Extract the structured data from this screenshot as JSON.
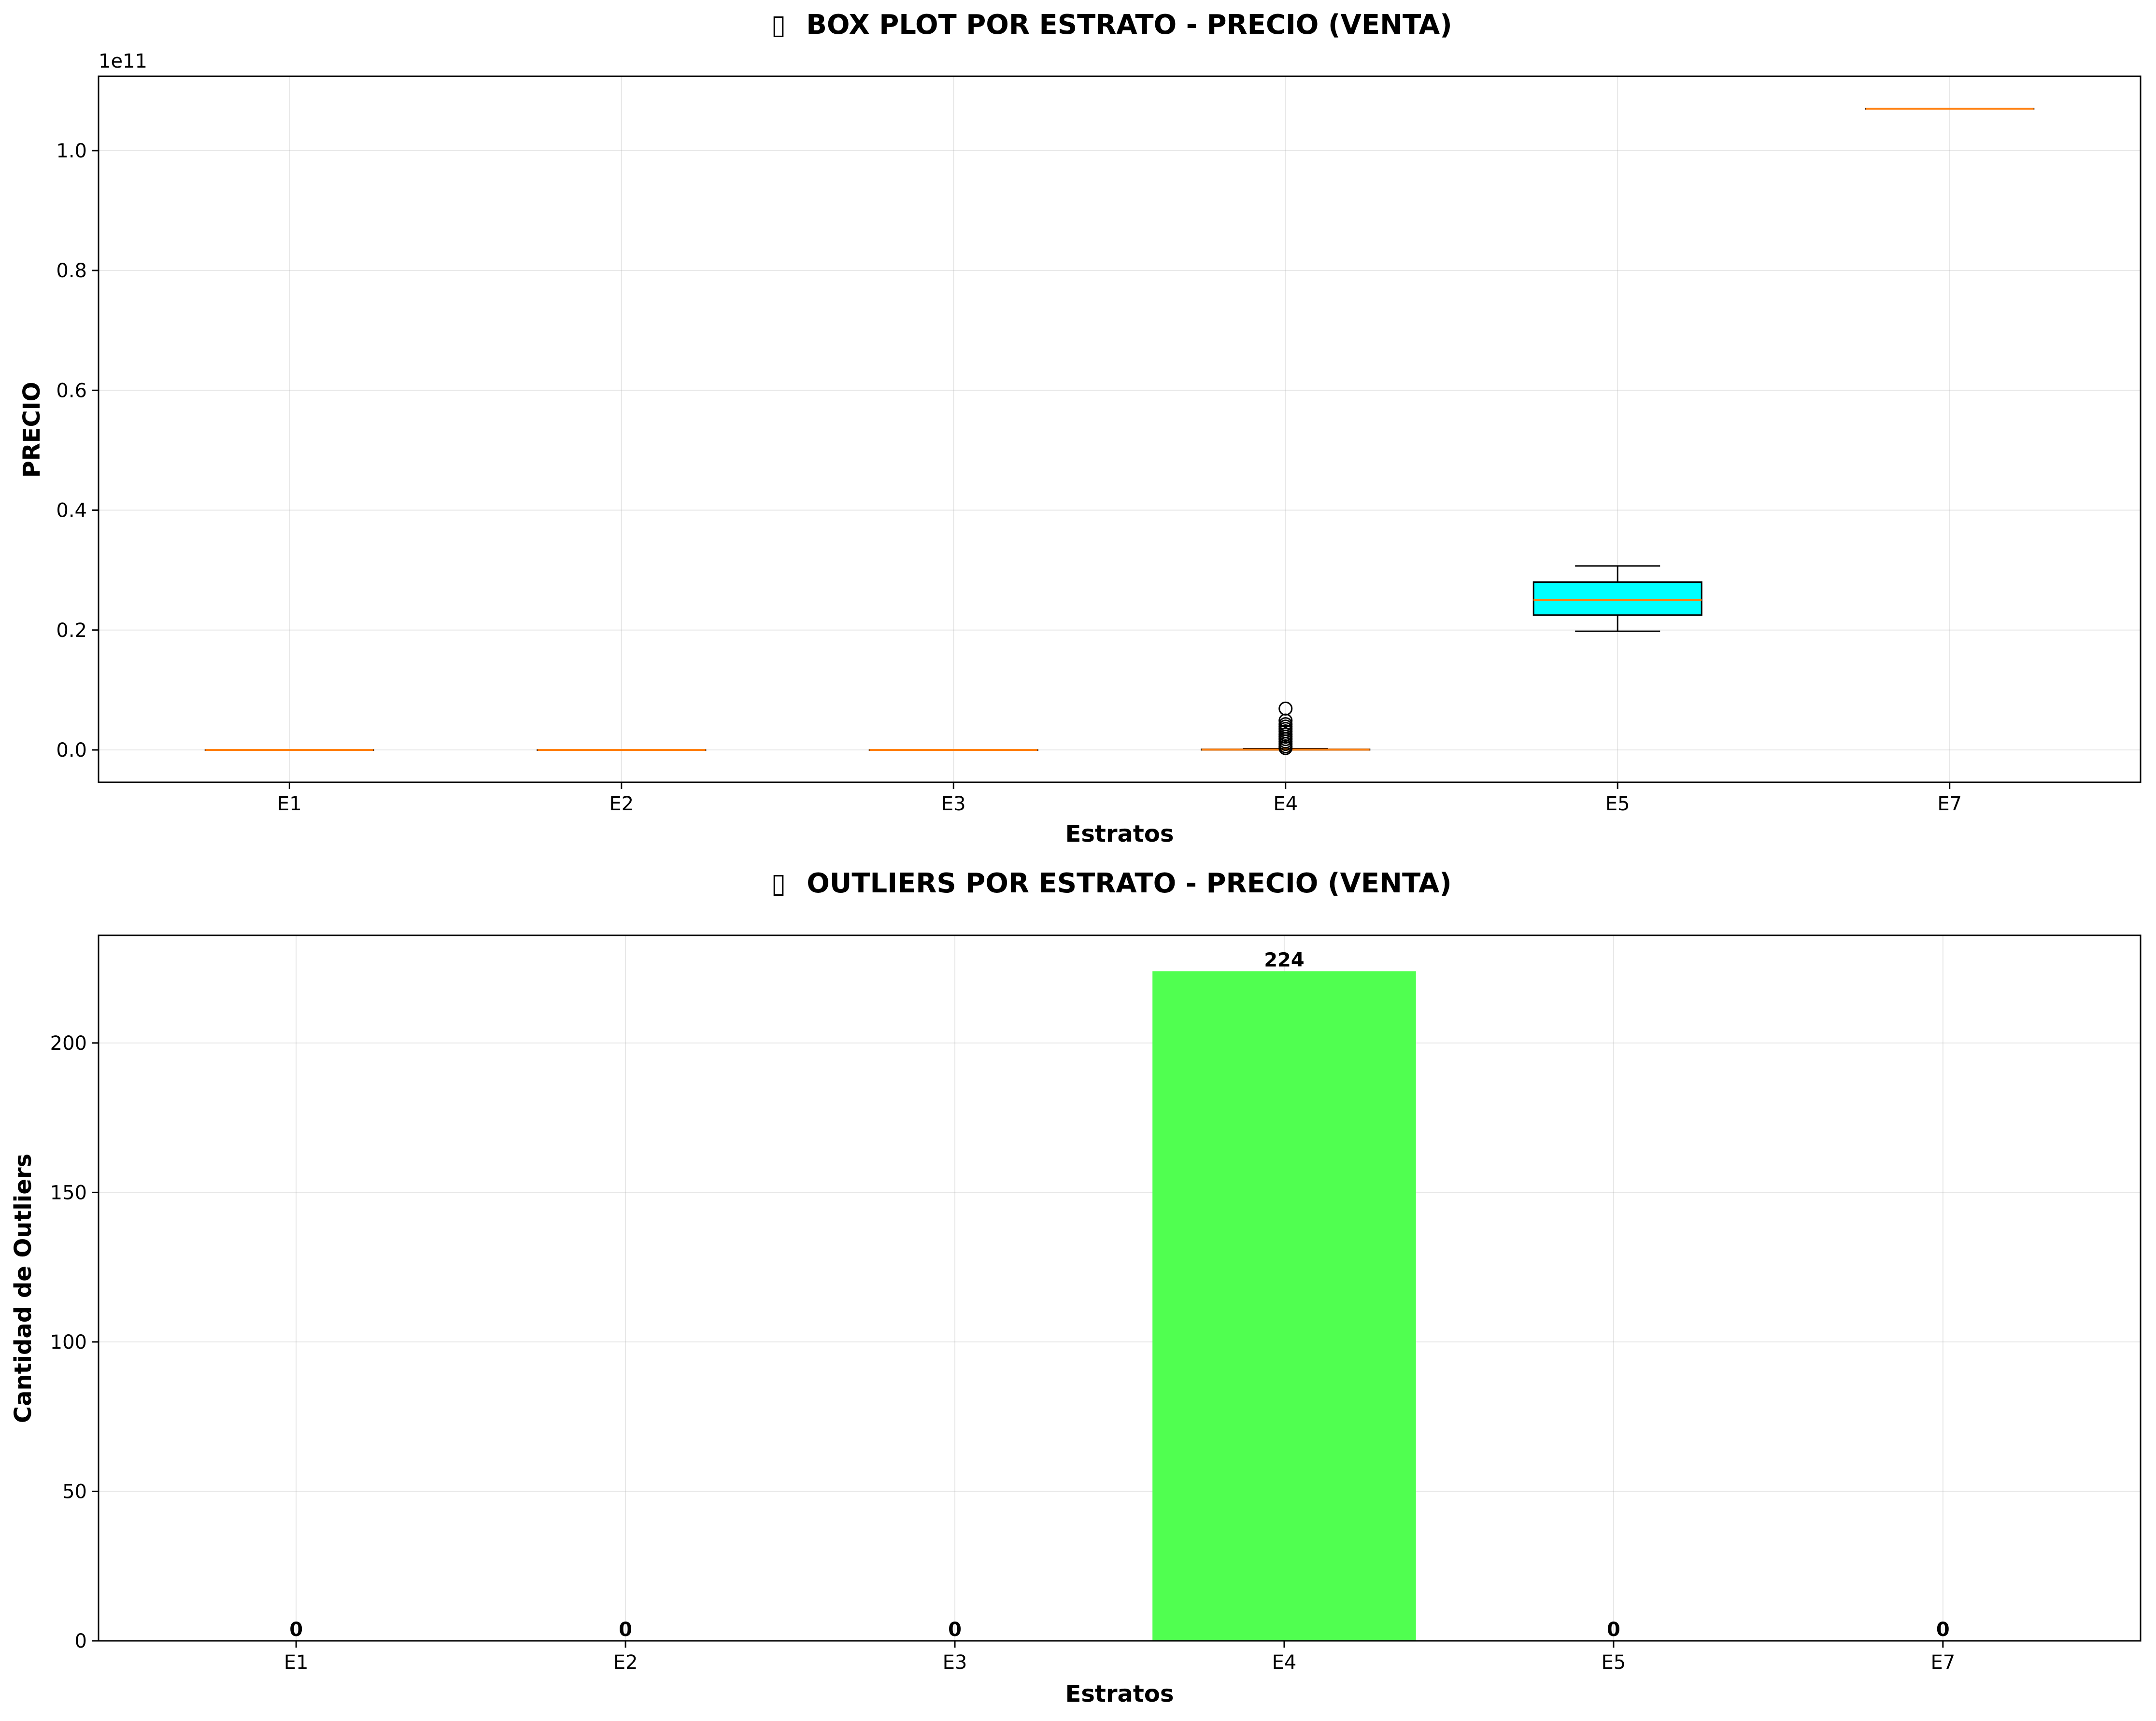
{
  "chart_data": [
    {
      "type": "box",
      "title": "BOX PLOT POR ESTRATO - PRECIO (VENTA)",
      "title_icon": "chart-icon",
      "xlabel": "Estratos",
      "ylabel": "PRECIO",
      "y_offset_text": "1e11",
      "ylim": [
        -0.054,
        1.124
      ],
      "yticks": [
        0.0,
        0.2,
        0.4,
        0.6,
        0.8,
        1.0
      ],
      "ytick_labels": [
        "0.0",
        "0.2",
        "0.4",
        "0.6",
        "0.8",
        "1.0"
      ],
      "grid": true,
      "box_color": "#00ffff",
      "median_color": "#ff7f0e",
      "categories": [
        "E1",
        "E2",
        "E3",
        "E4",
        "E5",
        "E7"
      ],
      "boxes": [
        {
          "category": "E1",
          "q1": 0.0,
          "median": 0.0,
          "q3": 0.0,
          "whisker_low": 0.0,
          "whisker_high": 0.0,
          "outliers": []
        },
        {
          "category": "E2",
          "q1": 0.0,
          "median": 0.0,
          "q3": 0.0,
          "whisker_low": 0.0,
          "whisker_high": 0.0,
          "outliers": []
        },
        {
          "category": "E3",
          "q1": 0.0,
          "median": 0.0,
          "q3": 0.0,
          "whisker_low": 0.0,
          "whisker_high": 0.0,
          "outliers": []
        },
        {
          "category": "E4",
          "q1": 0.0,
          "median": 0.0005,
          "q3": 0.001,
          "whisker_low": 0.0,
          "whisker_high": 0.002,
          "outliers": [
            0.003,
            0.006,
            0.01,
            0.014,
            0.018,
            0.022,
            0.026,
            0.031,
            0.035,
            0.039,
            0.043,
            0.049,
            0.069
          ]
        },
        {
          "category": "E5",
          "q1": 0.225,
          "median": 0.25,
          "q3": 0.28,
          "whisker_low": 0.198,
          "whisker_high": 0.307,
          "outliers": []
        },
        {
          "category": "E7",
          "q1": 1.07,
          "median": 1.07,
          "q3": 1.07,
          "whisker_low": 1.07,
          "whisker_high": 1.07,
          "outliers": []
        }
      ]
    },
    {
      "type": "bar",
      "title": "OUTLIERS POR ESTRATO - PRECIO (VENTA)",
      "title_icon": "chart-icon",
      "xlabel": "Estratos",
      "ylabel": "Cantidad de Outliers",
      "ylim": [
        0,
        236
      ],
      "yticks": [
        0,
        50,
        100,
        150,
        200
      ],
      "grid": true,
      "bar_color": "#50ff50",
      "categories": [
        "E1",
        "E2",
        "E3",
        "E4",
        "E5",
        "E7"
      ],
      "values": [
        0,
        0,
        0,
        224,
        0,
        0
      ]
    }
  ]
}
